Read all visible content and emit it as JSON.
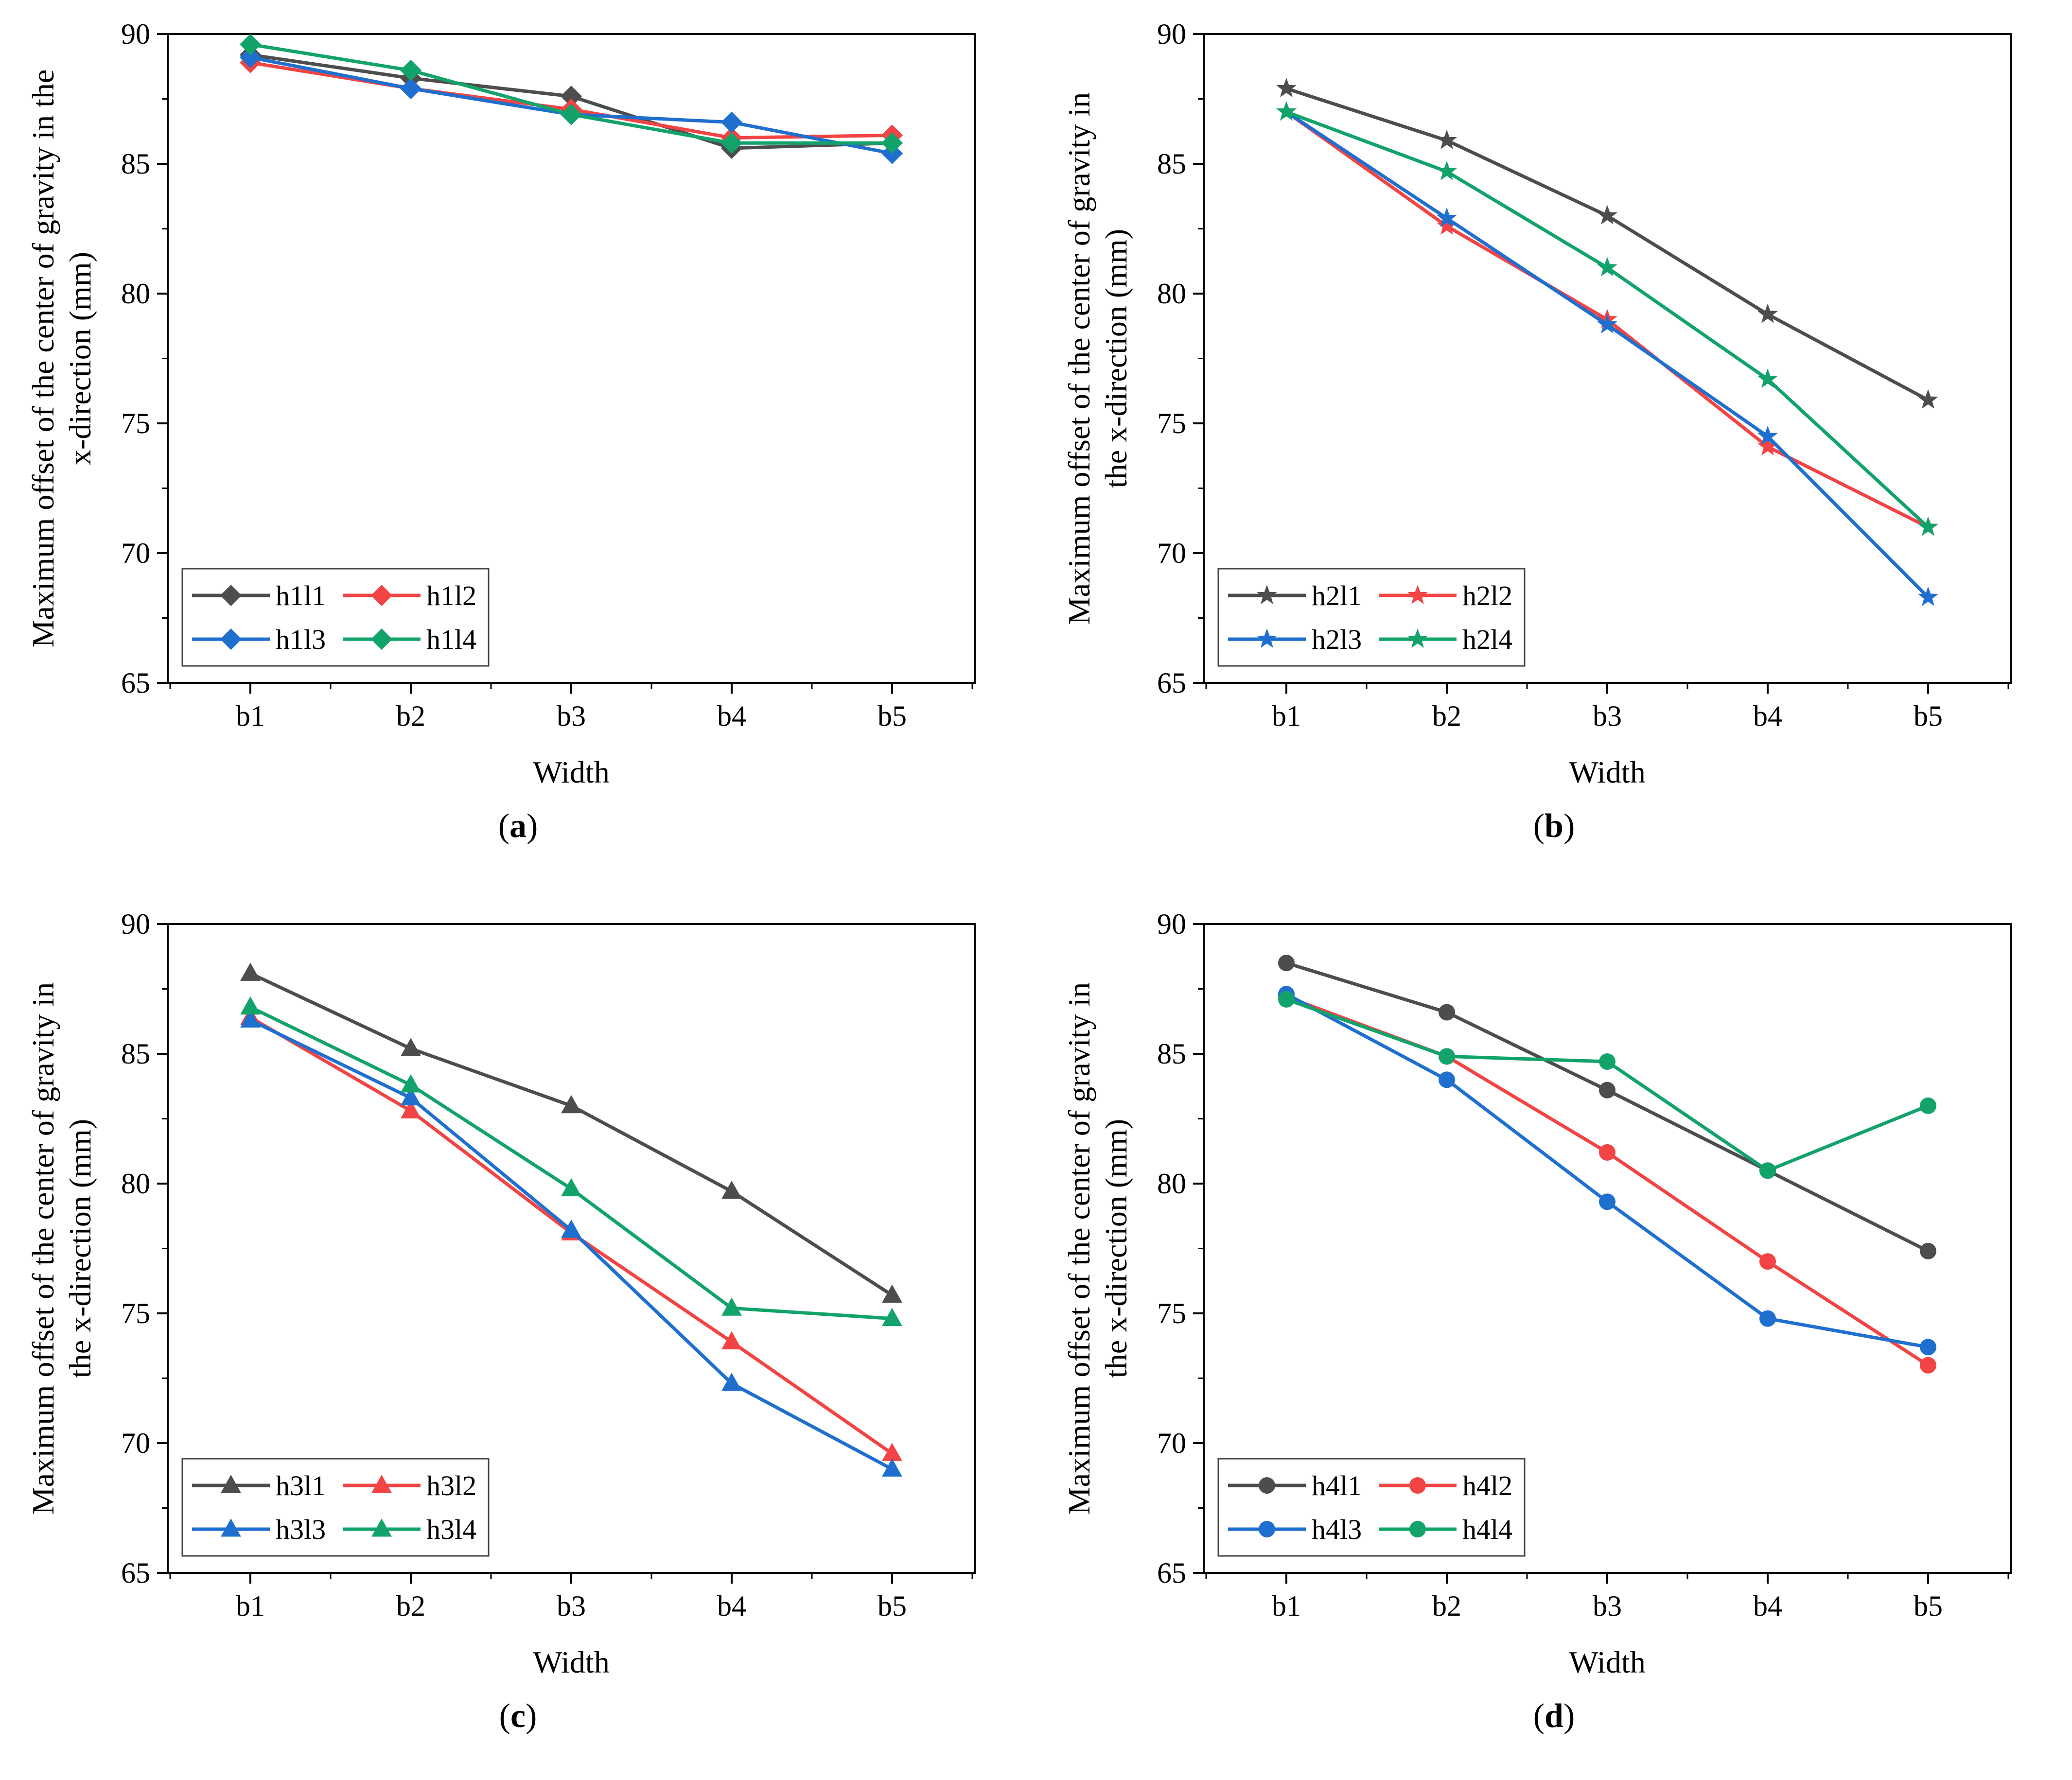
{
  "colors": {
    "s1": "#4d4d4d",
    "s2": "#f24444",
    "s3": "#1f6fcf",
    "s4": "#12a36b"
  },
  "chart_data": [
    {
      "type": "line",
      "panel_label": "a",
      "marker": "diamond",
      "xlabel": "Width",
      "ylabel": [
        "Maximum offset of the center of gravity in the",
        "x-direction (mm)"
      ],
      "categories": [
        "b1",
        "b2",
        "b3",
        "b4",
        "b5"
      ],
      "ylim": [
        65,
        90
      ],
      "yticks": [
        65,
        70,
        75,
        80,
        85,
        90
      ],
      "legend": "lower-left",
      "series": [
        {
          "name": "h1l1",
          "color": "#4d4d4d",
          "values": [
            89.2,
            88.3,
            87.6,
            85.6,
            85.8
          ]
        },
        {
          "name": "h1l2",
          "color": "#f24444",
          "values": [
            88.9,
            87.9,
            87.1,
            86.0,
            86.1
          ]
        },
        {
          "name": "h1l3",
          "color": "#1f6fcf",
          "values": [
            89.1,
            87.9,
            86.9,
            86.6,
            85.4
          ]
        },
        {
          "name": "h1l4",
          "color": "#12a36b",
          "values": [
            89.6,
            88.6,
            86.9,
            85.8,
            85.8
          ]
        }
      ]
    },
    {
      "type": "line",
      "panel_label": "b",
      "marker": "star",
      "xlabel": "Width",
      "ylabel": [
        "Maximum offset of the center of gravity in",
        "the x-direction (mm)"
      ],
      "categories": [
        "b1",
        "b2",
        "b3",
        "b4",
        "b5"
      ],
      "ylim": [
        65,
        90
      ],
      "yticks": [
        65,
        70,
        75,
        80,
        85,
        90
      ],
      "legend": "lower-left",
      "series": [
        {
          "name": "h2l1",
          "color": "#4d4d4d",
          "values": [
            87.9,
            85.9,
            83.0,
            79.2,
            75.9
          ]
        },
        {
          "name": "h2l2",
          "color": "#f24444",
          "values": [
            87.0,
            82.6,
            79.0,
            74.1,
            71.0
          ]
        },
        {
          "name": "h2l3",
          "color": "#1f6fcf",
          "values": [
            87.0,
            82.9,
            78.8,
            74.5,
            68.3
          ]
        },
        {
          "name": "h2l4",
          "color": "#12a36b",
          "values": [
            87.0,
            84.7,
            81.0,
            76.7,
            71.0
          ]
        }
      ]
    },
    {
      "type": "line",
      "panel_label": "c",
      "marker": "triangle",
      "xlabel": "Width",
      "ylabel": [
        "Maximum offset of the center of gravity in",
        "the x-direction (mm)"
      ],
      "categories": [
        "b1",
        "b2",
        "b3",
        "b4",
        "b5"
      ],
      "ylim": [
        65,
        90
      ],
      "yticks": [
        65,
        70,
        75,
        80,
        85,
        90
      ],
      "legend": "lower-left",
      "series": [
        {
          "name": "h3l1",
          "color": "#4d4d4d",
          "values": [
            88.1,
            85.2,
            83.0,
            79.7,
            75.7
          ]
        },
        {
          "name": "h3l2",
          "color": "#f24444",
          "values": [
            86.4,
            82.8,
            78.1,
            73.9,
            69.6
          ]
        },
        {
          "name": "h3l3",
          "color": "#1f6fcf",
          "values": [
            86.3,
            83.3,
            78.2,
            72.3,
            69.0
          ]
        },
        {
          "name": "h3l4",
          "color": "#12a36b",
          "values": [
            86.8,
            83.8,
            79.8,
            75.2,
            74.8
          ]
        }
      ]
    },
    {
      "type": "line",
      "panel_label": "d",
      "marker": "circle",
      "xlabel": "Width",
      "ylabel": [
        "Maximum offset of the center of gravity in",
        "the x-direction (mm)"
      ],
      "categories": [
        "b1",
        "b2",
        "b3",
        "b4",
        "b5"
      ],
      "ylim": [
        65,
        90
      ],
      "yticks": [
        65,
        70,
        75,
        80,
        85,
        90
      ],
      "legend": "lower-left",
      "series": [
        {
          "name": "h4l1",
          "color": "#4d4d4d",
          "values": [
            88.5,
            86.6,
            83.6,
            80.5,
            77.4
          ]
        },
        {
          "name": "h4l2",
          "color": "#f24444",
          "values": [
            87.2,
            84.9,
            81.2,
            77.0,
            73.0
          ]
        },
        {
          "name": "h4l3",
          "color": "#1f6fcf",
          "values": [
            87.3,
            84.0,
            79.3,
            74.8,
            73.7
          ]
        },
        {
          "name": "h4l4",
          "color": "#12a36b",
          "values": [
            87.1,
            84.9,
            84.7,
            80.5,
            83.0
          ]
        }
      ]
    }
  ]
}
